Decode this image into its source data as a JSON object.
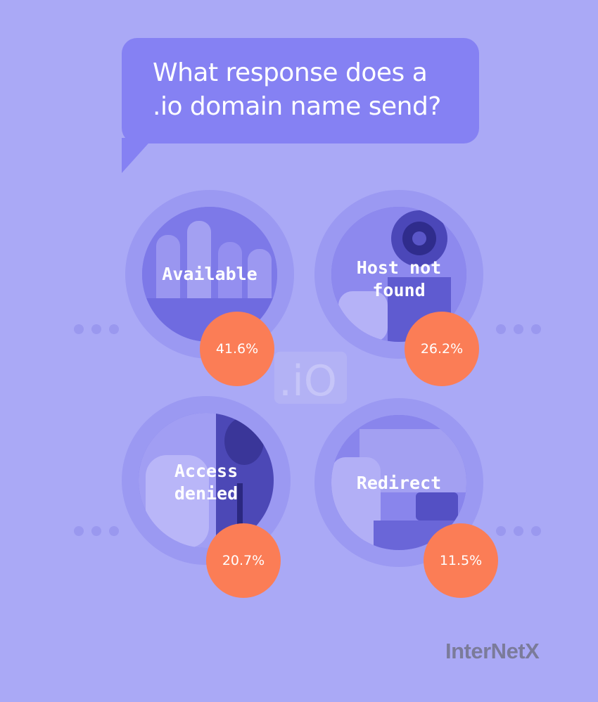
{
  "question": {
    "line1": "What response does a",
    "line2": ".io domain name send?"
  },
  "watermark": ".iO",
  "responses": [
    {
      "label_line1": "Available",
      "label_line2": "",
      "percent": "41.6%",
      "icon": "thumbs-up-photo"
    },
    {
      "label_line1": "Host not",
      "label_line2": "found",
      "percent": "26.2%",
      "icon": "camera-photo"
    },
    {
      "label_line1": "Access",
      "label_line2": "denied",
      "percent": "20.7%",
      "icon": "stop-hand-photo"
    },
    {
      "label_line1": "Redirect",
      "label_line2": "",
      "percent": "11.5%",
      "icon": "typing-photo"
    }
  ],
  "brand": {
    "logo_text": "InterNetX"
  },
  "colors": {
    "background": "#aaa9f6",
    "bubble": "#8581f3",
    "percent_badge": "#fb7d56",
    "ring": "#9b99f2"
  }
}
